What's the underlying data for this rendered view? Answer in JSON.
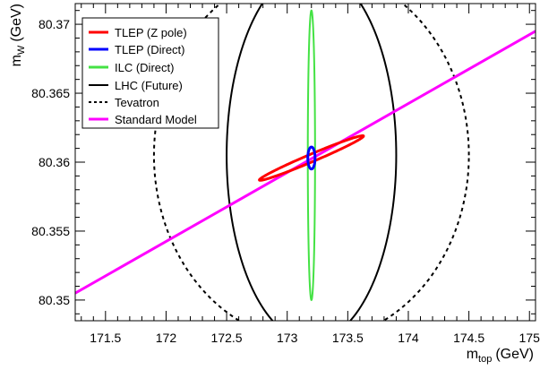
{
  "chart_data": {
    "type": "line",
    "xlabel": {
      "main": "m",
      "sub": "top",
      "unit": "(GeV)"
    },
    "ylabel": {
      "main": "m",
      "sub": "W",
      "unit": "(GeV)"
    },
    "xlim": [
      171.25,
      175.05
    ],
    "ylim": [
      80.3485,
      80.3715
    ],
    "x_ticks": [
      171.5,
      172,
      172.5,
      173,
      173.5,
      174,
      174.5,
      175
    ],
    "x_tick_labels": [
      "171.5",
      "172",
      "172.5",
      "173",
      "173.5",
      "174",
      "174.5",
      "175"
    ],
    "y_ticks": [
      80.35,
      80.355,
      80.36,
      80.365,
      80.37
    ],
    "y_tick_labels": [
      "80.35",
      "80.355",
      "80.36",
      "80.365",
      "80.37"
    ],
    "grid": false,
    "legend_position": "top-left",
    "legend": [
      {
        "label": "TLEP (Z pole)",
        "color": "#ff0000",
        "style": "solid"
      },
      {
        "label": "TLEP (Direct)",
        "color": "#0000ff",
        "style": "solid"
      },
      {
        "label": "ILC (Direct)",
        "color": "#44e244",
        "style": "solid"
      },
      {
        "label": "LHC (Future)",
        "color": "#000000",
        "style": "solid"
      },
      {
        "label": "Tevatron",
        "color": "#000000",
        "style": "dashed"
      },
      {
        "label": "Standard Model",
        "color": "#ff00ff",
        "style": "solid"
      }
    ],
    "series": [
      {
        "name": "Standard Model",
        "type": "line",
        "color": "#ff00ff",
        "points": [
          [
            171.25,
            80.3505
          ],
          [
            175.05,
            80.3695
          ]
        ]
      },
      {
        "name": "Tevatron",
        "type": "ellipse",
        "color": "#000000",
        "style": "dashed",
        "center": [
          173.2,
          80.3605
        ],
        "radius_x": 1.3,
        "radius_y": 0.0135
      },
      {
        "name": "LHC (Future)",
        "type": "ellipse",
        "color": "#000000",
        "style": "solid",
        "center": [
          173.2,
          80.3605
        ],
        "radius_x": 0.7,
        "radius_y": 0.0135
      },
      {
        "name": "ILC (Direct)",
        "type": "ellipse",
        "color": "#44e244",
        "style": "solid",
        "center": [
          173.2,
          80.3605
        ],
        "radius_x": 0.03,
        "radius_y": 0.0105
      },
      {
        "name": "TLEP (Z pole)",
        "type": "ellipse",
        "color": "#ff0000",
        "style": "solid",
        "center": [
          173.2,
          80.3603
        ],
        "radius_x": 0.43,
        "radius_y": 0.0003,
        "slope": 0.0037
      },
      {
        "name": "TLEP (Direct)",
        "type": "ellipse",
        "color": "#0000ff",
        "style": "solid",
        "center": [
          173.2,
          80.3603
        ],
        "radius_x": 0.03,
        "radius_y": 0.0008
      }
    ]
  }
}
